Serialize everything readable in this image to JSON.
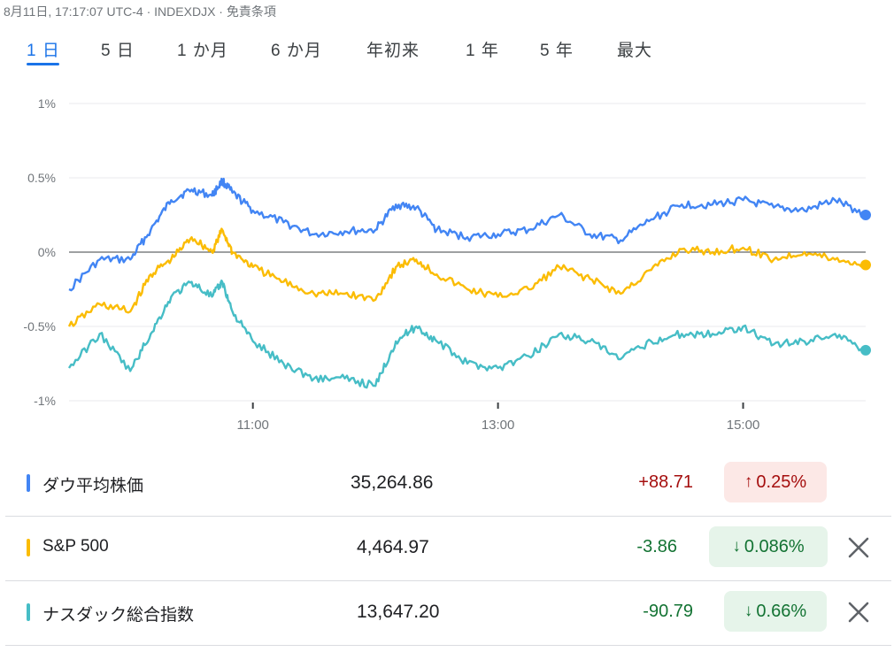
{
  "header": {
    "timestamp": "8月11日, 17:17:07 UTC-4",
    "sep1": " · ",
    "symbol": "INDEXDJX",
    "sep2": " · ",
    "disclaimer": "免責条項"
  },
  "tabs": [
    {
      "label": "1 日",
      "active": true
    },
    {
      "label": "5 日",
      "active": false
    },
    {
      "label": "1 か月",
      "active": false
    },
    {
      "label": "6 か月",
      "active": false
    },
    {
      "label": "年初来",
      "active": false
    },
    {
      "label": "1 年",
      "active": false
    },
    {
      "label": "5 年",
      "active": false
    },
    {
      "label": "最大",
      "active": false
    }
  ],
  "colors": {
    "accent": "#1a73e8",
    "dow": "#4285f4",
    "sp500": "#fbbc04",
    "nasdaq": "#46bdc6",
    "up": "#a50e0e",
    "down": "#137333"
  },
  "chart_data": {
    "type": "line",
    "x_range": [
      "09:30",
      "16:00"
    ],
    "ylim": [
      -1,
      1
    ],
    "y_ticks": [
      "1%",
      "0.5%",
      "0%",
      "-0.5%",
      "-1%"
    ],
    "y_tick_values": [
      1,
      0.5,
      0,
      -0.5,
      -1
    ],
    "x_ticks": [
      "11:00",
      "13:00",
      "15:00"
    ],
    "baseline": 0,
    "series": [
      {
        "name": "ダウ平均株価",
        "color": "#4285f4",
        "x": [
          "09:30",
          "09:45",
          "10:00",
          "10:10",
          "10:20",
          "10:30",
          "10:40",
          "10:45",
          "10:50",
          "11:00",
          "11:15",
          "11:30",
          "11:45",
          "12:00",
          "12:10",
          "12:20",
          "12:30",
          "12:45",
          "13:00",
          "13:15",
          "13:30",
          "13:45",
          "14:00",
          "14:15",
          "14:30",
          "14:45",
          "15:00",
          "15:15",
          "15:30",
          "15:45",
          "16:00"
        ],
        "values": [
          -0.25,
          -0.05,
          -0.05,
          0.15,
          0.35,
          0.42,
          0.38,
          0.48,
          0.4,
          0.28,
          0.2,
          0.12,
          0.14,
          0.15,
          0.32,
          0.3,
          0.15,
          0.1,
          0.12,
          0.15,
          0.25,
          0.12,
          0.08,
          0.22,
          0.32,
          0.32,
          0.35,
          0.3,
          0.28,
          0.35,
          0.25
        ]
      },
      {
        "name": "S&P 500",
        "color": "#fbbc04",
        "x": [
          "09:30",
          "09:45",
          "10:00",
          "10:10",
          "10:20",
          "10:30",
          "10:40",
          "10:45",
          "10:50",
          "11:00",
          "11:15",
          "11:30",
          "11:45",
          "12:00",
          "12:10",
          "12:20",
          "12:30",
          "12:45",
          "13:00",
          "13:15",
          "13:30",
          "13:45",
          "14:00",
          "14:15",
          "14:30",
          "14:45",
          "15:00",
          "15:15",
          "15:30",
          "15:45",
          "16:00"
        ],
        "values": [
          -0.5,
          -0.35,
          -0.4,
          -0.15,
          -0.05,
          0.1,
          0.0,
          0.15,
          0.0,
          -0.1,
          -0.2,
          -0.28,
          -0.28,
          -0.32,
          -0.1,
          -0.05,
          -0.15,
          -0.25,
          -0.3,
          -0.25,
          -0.1,
          -0.18,
          -0.28,
          -0.12,
          0.02,
          0.0,
          0.03,
          -0.05,
          0.0,
          -0.05,
          -0.086
        ]
      },
      {
        "name": "ナスダック総合指数",
        "color": "#46bdc6",
        "x": [
          "09:30",
          "09:45",
          "10:00",
          "10:10",
          "10:20",
          "10:30",
          "10:40",
          "10:45",
          "10:50",
          "11:00",
          "11:15",
          "11:30",
          "11:45",
          "12:00",
          "12:10",
          "12:20",
          "12:30",
          "12:45",
          "13:00",
          "13:15",
          "13:30",
          "13:45",
          "14:00",
          "14:15",
          "14:30",
          "14:45",
          "15:00",
          "15:15",
          "15:30",
          "15:45",
          "16:00"
        ],
        "values": [
          -0.78,
          -0.55,
          -0.8,
          -0.55,
          -0.3,
          -0.2,
          -0.3,
          -0.2,
          -0.4,
          -0.6,
          -0.75,
          -0.85,
          -0.85,
          -0.9,
          -0.6,
          -0.5,
          -0.6,
          -0.75,
          -0.78,
          -0.7,
          -0.55,
          -0.6,
          -0.72,
          -0.6,
          -0.55,
          -0.55,
          -0.5,
          -0.62,
          -0.6,
          -0.55,
          -0.66
        ]
      }
    ]
  },
  "rows": [
    {
      "name": "ダウ平均株価",
      "price": "35,264.86",
      "change": "+88.71",
      "arrow": "↑",
      "pct": "0.25%",
      "direction": "up",
      "removable": false
    },
    {
      "name": "S&P 500",
      "price": "4,464.97",
      "change": "-3.86",
      "arrow": "↓",
      "pct": "0.086%",
      "direction": "down",
      "removable": true
    },
    {
      "name": "ナスダック総合指数",
      "price": "13,647.20",
      "change": "-90.79",
      "arrow": "↓",
      "pct": "0.66%",
      "direction": "down",
      "removable": true
    }
  ],
  "icons": {
    "arrow_up": "arrow-up-icon",
    "arrow_down": "arrow-down-icon",
    "close": "close-icon"
  }
}
